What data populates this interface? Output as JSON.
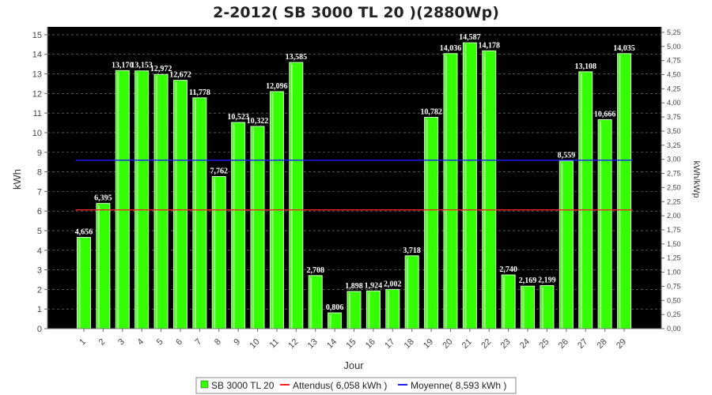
{
  "chart_data": {
    "type": "bar",
    "title": "2-2012( SB 3000 TL 20 )(2880Wp)",
    "xlabel": "Jour",
    "ylabel": "kWh",
    "y2label": "kWh/kWp",
    "ylim": [
      0,
      15.4
    ],
    "y2lim": [
      0,
      5.347
    ],
    "y_ticks": [
      "0",
      "1",
      "2",
      "3",
      "4",
      "5",
      "6",
      "7",
      "8",
      "9",
      "10",
      "11",
      "12",
      "13",
      "14",
      "15"
    ],
    "y2_ticks": [
      "0,00",
      "0,25",
      "0,50",
      "0,75",
      "1,00",
      "1,25",
      "1,50",
      "1,75",
      "2,00",
      "2,25",
      "2,50",
      "2,75",
      "3,00",
      "3,25",
      "3,50",
      "3,75",
      "4,00",
      "4,25",
      "4,50",
      "4,75",
      "5,00",
      "5,25"
    ],
    "categories": [
      "1",
      "2",
      "3",
      "4",
      "5",
      "6",
      "7",
      "8",
      "9",
      "10",
      "11",
      "12",
      "13",
      "14",
      "15",
      "16",
      "17",
      "18",
      "19",
      "20",
      "21",
      "22",
      "23",
      "24",
      "25",
      "26",
      "27",
      "28",
      "29"
    ],
    "series": [
      {
        "name": "SB 3000 TL 20",
        "color": "#33ff00",
        "values": [
          4.656,
          6.395,
          13.17,
          13.153,
          12.972,
          12.672,
          11.778,
          7.762,
          10.523,
          10.322,
          12.096,
          13.585,
          2.708,
          0.806,
          1.898,
          1.924,
          2.002,
          3.718,
          10.782,
          14.036,
          14.587,
          14.178,
          2.74,
          2.169,
          2.199,
          8.559,
          13.108,
          10.666,
          14.035
        ],
        "labels": [
          "4,656",
          "6,395",
          "13,170",
          "13,153",
          "12,972",
          "12,672",
          "11,778",
          "7,762",
          "10,523",
          "10,322",
          "12,096",
          "13,585",
          "2,708",
          "0,806",
          "1,898",
          "1,924",
          "2,002",
          "3,718",
          "10,782",
          "14,036",
          "14,587",
          "14,178",
          "2,740",
          "2,169",
          "2,199",
          "8,559",
          "13,108",
          "10,666",
          "14,035"
        ]
      }
    ],
    "lines": [
      {
        "name": "Attendus( 6,058 kWh )",
        "value": 6.058,
        "color": "#ff2020"
      },
      {
        "name": "Moyenne( 8,593 kWh )",
        "value": 8.593,
        "color": "#1c1cff"
      }
    ],
    "grid": true,
    "legend": "bottom-center",
    "colors": {
      "plot_bg": "#000000",
      "grid": "#888888"
    }
  }
}
